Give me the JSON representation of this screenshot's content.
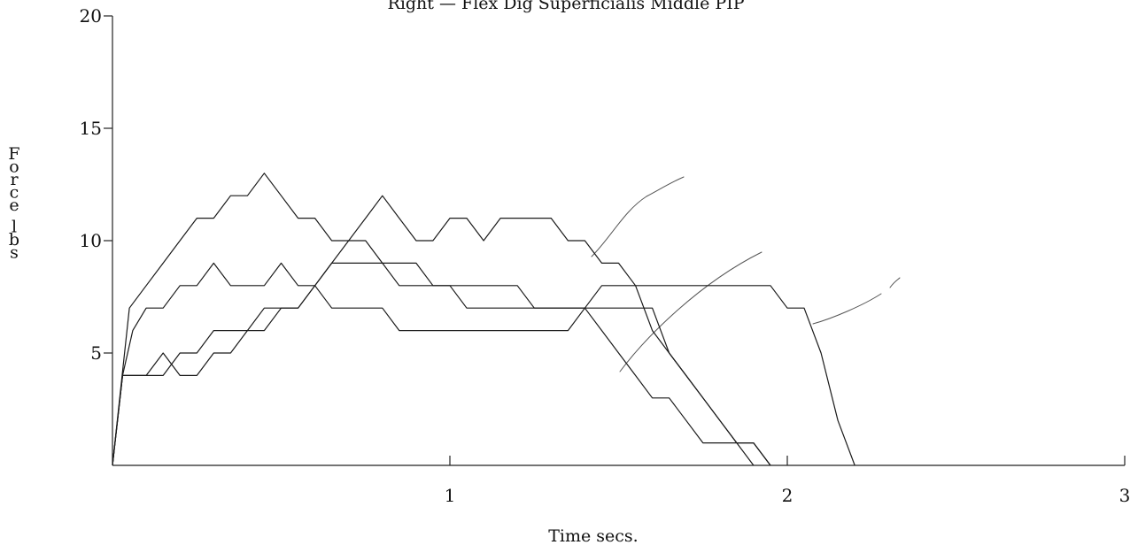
{
  "chart_data": {
    "type": "line",
    "title": "Right — Flex Dig Superficialis Middle PIP",
    "xlabel": "Time secs.",
    "ylabel": "Force lbs",
    "xlim": [
      0,
      3
    ],
    "ylim": [
      0,
      20
    ],
    "x_ticks": [
      "1",
      "2",
      "3"
    ],
    "y_ticks": [
      "5",
      "10",
      "15",
      "20"
    ],
    "grid": false,
    "series": [
      {
        "x": [
          0,
          0.05,
          0.1,
          0.15,
          0.2,
          0.25,
          0.3,
          0.35,
          0.4,
          0.45,
          0.5,
          0.55,
          0.6,
          0.65,
          0.7,
          0.75,
          0.8,
          0.85,
          0.9,
          0.95,
          1.0,
          1.05,
          1.1,
          1.15,
          1.2,
          1.25,
          1.3,
          1.35,
          1.4,
          1.45,
          1.5,
          1.55,
          1.6,
          1.65,
          1.7,
          1.75,
          1.8,
          1.85,
          1.9,
          1.95
        ],
        "y": [
          0,
          7,
          8,
          9,
          10,
          11,
          11,
          12,
          12,
          13,
          12,
          11,
          11,
          10,
          10,
          10,
          9,
          9,
          9,
          8,
          8,
          8,
          8,
          8,
          8,
          7,
          7,
          7,
          7,
          7,
          7,
          7,
          7,
          5,
          4,
          3,
          2,
          1,
          1,
          0
        ]
      },
      {
        "x": [
          0,
          0.03,
          0.06,
          0.1,
          0.15,
          0.2,
          0.25,
          0.3,
          0.35,
          0.4,
          0.45,
          0.5,
          0.55,
          0.6,
          0.65,
          0.7,
          0.75,
          0.8,
          0.85,
          0.9,
          0.95,
          1.0,
          1.05,
          1.1,
          1.15,
          1.2,
          1.25,
          1.3,
          1.35,
          1.4,
          1.45,
          1.5,
          1.55,
          1.6,
          1.65,
          1.7,
          1.75,
          1.8,
          1.85,
          1.9,
          1.95
        ],
        "y": [
          0,
          4,
          6,
          7,
          7,
          8,
          8,
          9,
          8,
          8,
          8,
          9,
          8,
          8,
          7,
          7,
          7,
          7,
          6,
          6,
          6,
          6,
          6,
          6,
          6,
          6,
          6,
          6,
          6,
          7,
          6,
          5,
          4,
          3,
          3,
          2,
          1,
          1,
          1,
          1,
          0
        ]
      },
      {
        "x": [
          0,
          0.03,
          0.06,
          0.1,
          0.15,
          0.2,
          0.25,
          0.3,
          0.35,
          0.4,
          0.45,
          0.5,
          0.55,
          0.6,
          0.65,
          0.7,
          0.75,
          0.8,
          0.85,
          0.9,
          0.95,
          1.0,
          1.05,
          1.1,
          1.15,
          1.2,
          1.25,
          1.3,
          1.35,
          1.4,
          1.45,
          1.5,
          1.55,
          1.6,
          1.65,
          1.7,
          1.75,
          1.8,
          1.85,
          1.9
        ],
        "y": [
          0,
          4,
          4,
          4,
          5,
          4,
          4,
          5,
          5,
          6,
          6,
          7,
          7,
          8,
          9,
          10,
          11,
          12,
          11,
          10,
          10,
          11,
          11,
          10,
          11,
          11,
          11,
          11,
          10,
          10,
          9,
          9,
          8,
          6,
          5,
          4,
          3,
          2,
          1,
          0
        ]
      },
      {
        "x": [
          0,
          0.03,
          0.06,
          0.1,
          0.15,
          0.2,
          0.25,
          0.3,
          0.35,
          0.4,
          0.45,
          0.5,
          0.55,
          0.6,
          0.65,
          0.7,
          0.75,
          0.8,
          0.85,
          0.9,
          0.95,
          1.0,
          1.05,
          1.1,
          1.15,
          1.2,
          1.25,
          1.3,
          1.35,
          1.4,
          1.45,
          1.5,
          1.55,
          1.6,
          1.65,
          1.7,
          1.75,
          1.8,
          1.85,
          1.9,
          1.95,
          2.0,
          2.05,
          2.1,
          2.15,
          2.2
        ],
        "y": [
          0,
          4,
          4,
          4,
          4,
          5,
          5,
          6,
          6,
          6,
          7,
          7,
          7,
          8,
          9,
          9,
          9,
          9,
          8,
          8,
          8,
          8,
          7,
          7,
          7,
          7,
          7,
          7,
          7,
          7,
          8,
          8,
          8,
          8,
          8,
          8,
          8,
          8,
          8,
          8,
          8,
          7,
          7,
          5,
          2,
          0
        ]
      }
    ]
  }
}
